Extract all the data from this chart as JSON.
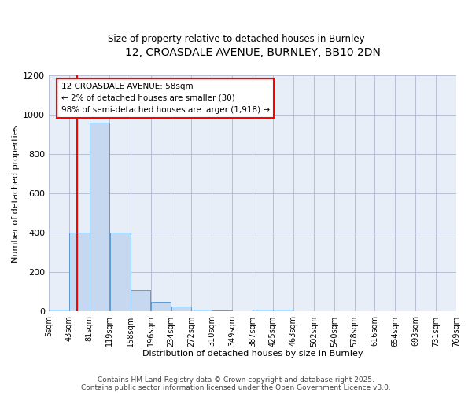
{
  "title": "12, CROASDALE AVENUE, BURNLEY, BB10 2DN",
  "subtitle": "Size of property relative to detached houses in Burnley",
  "xlabel": "Distribution of detached houses by size in Burnley",
  "ylabel": "Number of detached properties",
  "bar_color": "#c5d8f0",
  "bar_edge_color": "#5b9bd5",
  "background_color": "#e8eef8",
  "grid_color": "#b0b8cc",
  "bin_edges": [
    5,
    43,
    81,
    119,
    158,
    196,
    234,
    272,
    310,
    349,
    387,
    425,
    463,
    502,
    540,
    578,
    616,
    654,
    693,
    731,
    769
  ],
  "bin_labels": [
    "5sqm",
    "43sqm",
    "81sqm",
    "119sqm",
    "158sqm",
    "196sqm",
    "234sqm",
    "272sqm",
    "310sqm",
    "349sqm",
    "387sqm",
    "425sqm",
    "463sqm",
    "502sqm",
    "540sqm",
    "578sqm",
    "616sqm",
    "654sqm",
    "693sqm",
    "731sqm",
    "769sqm"
  ],
  "bar_heights": [
    10,
    400,
    960,
    400,
    110,
    50,
    25,
    10,
    5,
    2,
    10,
    10,
    0,
    0,
    0,
    0,
    0,
    0,
    0,
    0
  ],
  "red_line_x": 58,
  "annotation_line1": "12 CROASDALE AVENUE: 58sqm",
  "annotation_line2": "← 2% of detached houses are smaller (30)",
  "annotation_line3": "98% of semi-detached houses are larger (1,918) →",
  "ylim": [
    0,
    1200
  ],
  "yticks": [
    0,
    200,
    400,
    600,
    800,
    1000,
    1200
  ],
  "footer_line1": "Contains HM Land Registry data © Crown copyright and database right 2025.",
  "footer_line2": "Contains public sector information licensed under the Open Government Licence v3.0."
}
